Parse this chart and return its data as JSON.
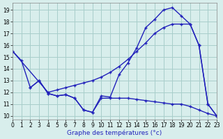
{
  "xlabel": "Graphe des températures (°c)",
  "background_color": "#d8eeec",
  "grid_color": "#a8ceca",
  "line_color": "#2222bb",
  "xlim": [
    0,
    23
  ],
  "ylim": [
    9.7,
    19.6
  ],
  "xticks": [
    0,
    1,
    2,
    3,
    4,
    5,
    6,
    7,
    8,
    9,
    10,
    11,
    12,
    13,
    14,
    15,
    16,
    17,
    18,
    19,
    20,
    21,
    22,
    23
  ],
  "yticks": [
    10,
    11,
    12,
    13,
    14,
    15,
    16,
    17,
    18,
    19
  ],
  "series1_x": [
    0,
    1,
    2,
    3,
    4,
    5,
    6,
    7,
    8,
    9,
    10,
    11,
    12,
    13,
    14,
    15,
    16,
    17,
    18,
    19,
    20,
    21,
    22,
    23
  ],
  "series1_y": [
    15.5,
    14.7,
    12.4,
    13.0,
    11.9,
    11.7,
    11.8,
    11.5,
    10.5,
    10.3,
    11.7,
    11.6,
    13.5,
    14.5,
    15.8,
    17.5,
    18.2,
    19.0,
    19.2,
    18.5,
    17.8,
    16.0,
    11.0,
    10.0
  ],
  "series2_x": [
    0,
    4,
    5,
    6,
    7,
    8,
    9,
    10,
    11,
    12,
    13,
    14,
    15,
    16,
    17,
    18,
    19,
    20,
    21,
    22,
    23
  ],
  "series2_y": [
    15.5,
    12.0,
    12.2,
    12.4,
    12.6,
    12.8,
    13.0,
    13.3,
    13.7,
    14.2,
    14.8,
    15.5,
    16.2,
    17.0,
    17.5,
    17.8,
    17.8,
    17.8,
    16.0,
    11.0,
    10.0
  ],
  "series3_x": [
    2,
    3,
    4,
    5,
    6,
    7,
    8,
    9,
    10,
    11,
    12,
    13,
    14,
    15,
    16,
    17,
    18,
    19,
    20,
    21,
    22,
    23
  ],
  "series3_y": [
    12.4,
    13.0,
    11.9,
    11.7,
    11.8,
    11.5,
    10.5,
    10.3,
    11.5,
    11.5,
    11.5,
    11.5,
    11.4,
    11.3,
    11.2,
    11.1,
    11.0,
    11.0,
    10.8,
    10.5,
    10.2,
    10.0
  ]
}
